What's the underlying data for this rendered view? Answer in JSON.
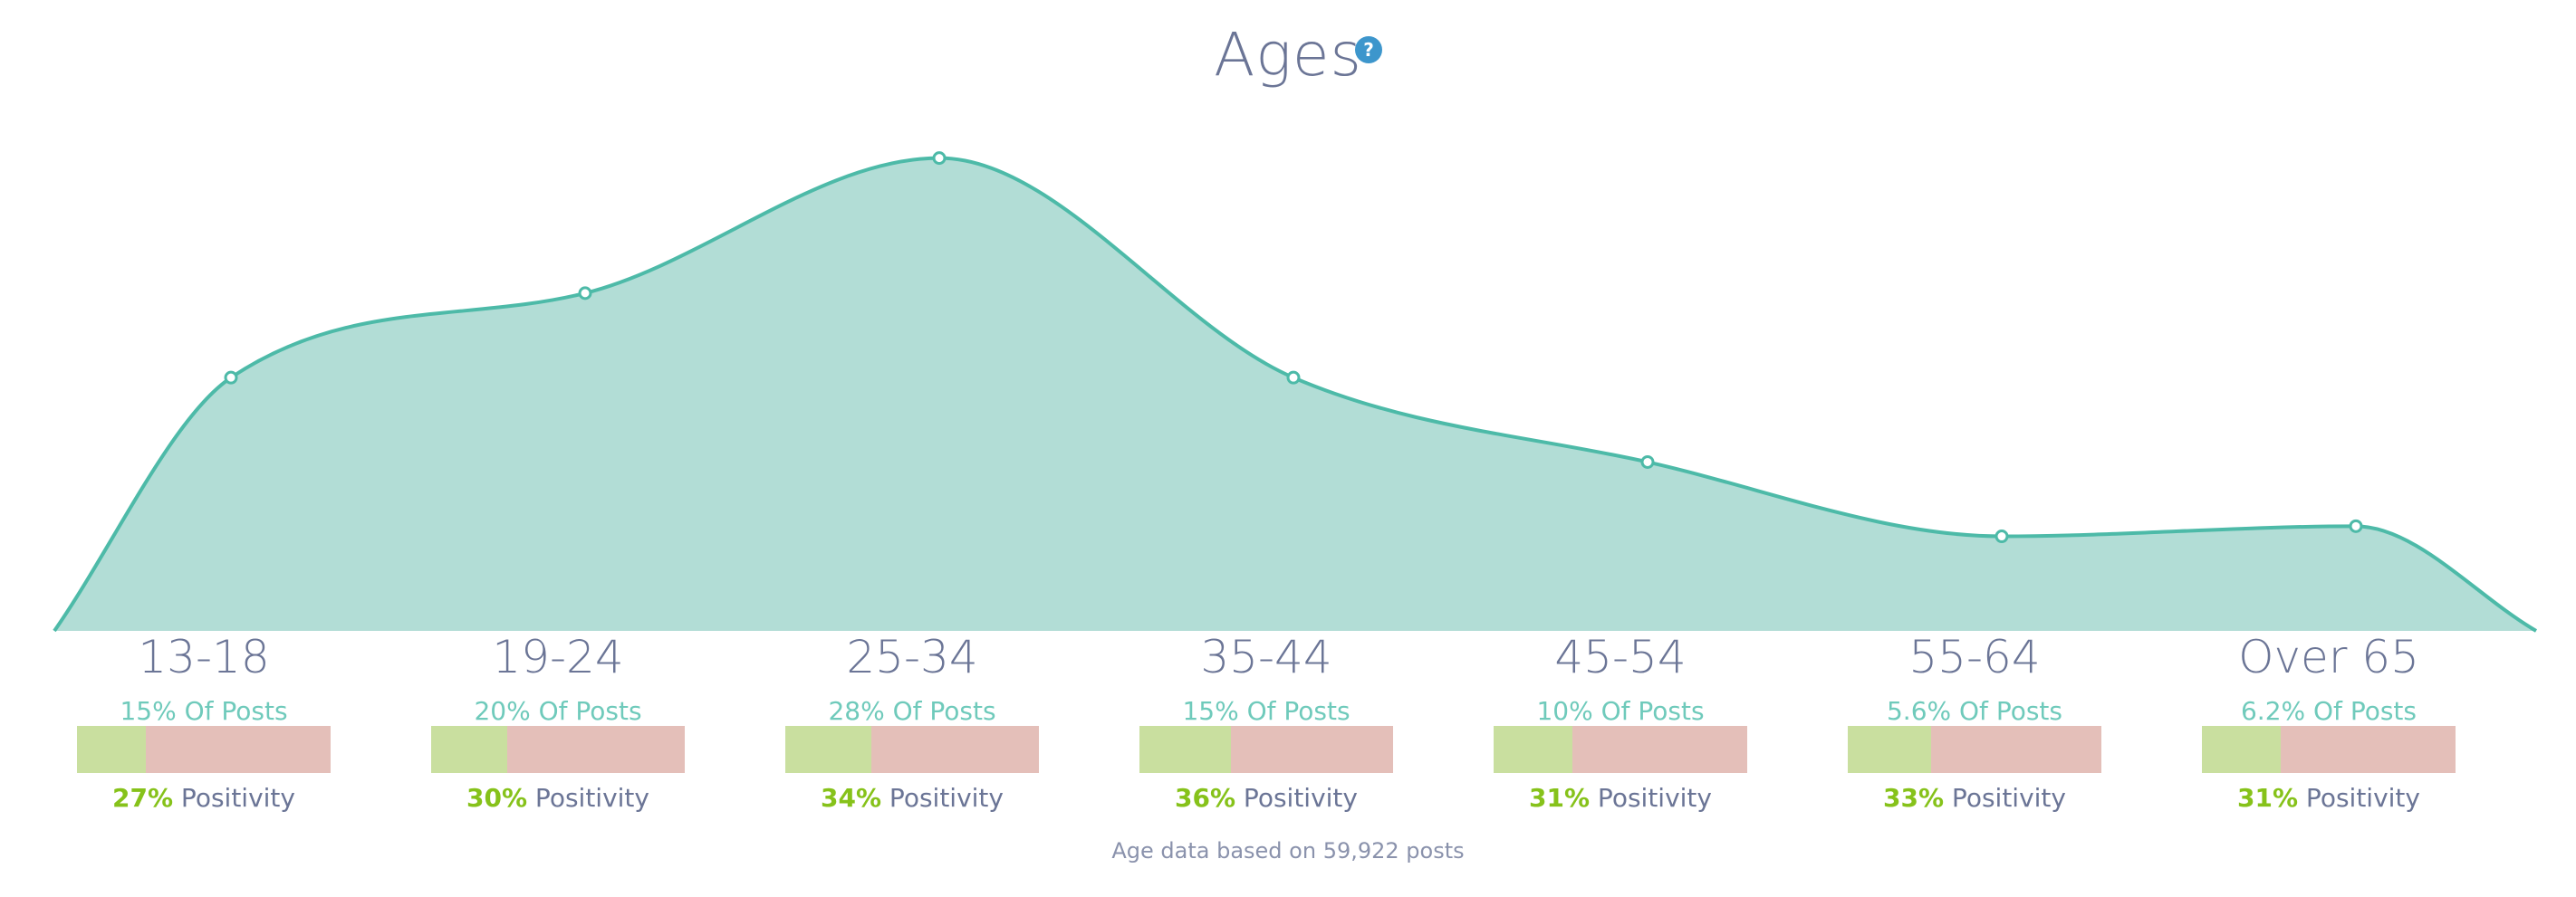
{
  "header": {
    "title": "Ages",
    "help_icon": "question-circle-icon",
    "help_symbol": "?"
  },
  "colors": {
    "area_fill": "#b2ddd6",
    "area_stroke": "#4dbaa8",
    "positive": "#c9df9f",
    "negative": "#e4bfb9",
    "positivity_text": "#86c21a",
    "posts_text": "#6fcabb",
    "label_text": "#6b7596",
    "help_icon": "#3d96cc"
  },
  "chart_data": {
    "type": "area",
    "title": "Ages",
    "categories": [
      "13-18",
      "19-24",
      "25-34",
      "35-44",
      "45-54",
      "55-64",
      "Over 65"
    ],
    "series": [
      {
        "values": [
          15,
          20,
          28,
          15,
          10,
          5.6,
          6.2
        ]
      }
    ],
    "posts_labels": [
      "15% Of Posts",
      "20% Of Posts",
      "28% Of Posts",
      "15% Of Posts",
      "10% Of Posts",
      "5.6% Of Posts",
      "6.2% Of Posts"
    ],
    "positivity": [
      27,
      30,
      34,
      36,
      31,
      33,
      31
    ],
    "positivity_labels": [
      "27%",
      "30%",
      "34%",
      "36%",
      "31%",
      "33%",
      "31%"
    ],
    "positivity_suffix": "Positivity",
    "smoothed": true,
    "markers": true,
    "grid": false,
    "legend": "none",
    "ylim": [
      0,
      32
    ]
  },
  "footer": {
    "note": "Age data based on 59,922 posts"
  }
}
